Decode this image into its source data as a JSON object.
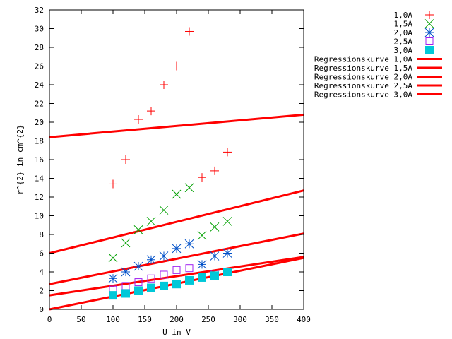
{
  "chart_data": {
    "type": "scatter",
    "xlabel": "U in V",
    "ylabel": "r^{2} in cm^{2}",
    "xlim": [
      0,
      400
    ],
    "ylim": [
      0,
      32
    ],
    "xticks": [
      0,
      50,
      100,
      150,
      200,
      250,
      300,
      350,
      400
    ],
    "yticks": [
      0,
      2,
      4,
      6,
      8,
      10,
      12,
      14,
      16,
      18,
      20,
      22,
      24,
      26,
      28,
      30,
      32
    ],
    "grid": false,
    "legend_position": "top-right outside",
    "series": [
      {
        "name": "1,0A",
        "marker": "plus",
        "color": "#ff0000",
        "x": [
          100,
          120,
          140,
          160,
          180,
          200,
          220,
          240,
          260,
          280
        ],
        "y": [
          13.4,
          16.0,
          20.3,
          21.2,
          24.0,
          26.0,
          29.7,
          14.1,
          14.8,
          16.8
        ]
      },
      {
        "name": "1,5A",
        "marker": "cross",
        "color": "#00a000",
        "x": [
          100,
          120,
          140,
          160,
          180,
          200,
          220,
          240,
          260,
          280
        ],
        "y": [
          5.5,
          7.1,
          8.5,
          9.4,
          10.6,
          12.3,
          13.0,
          7.9,
          8.8,
          9.4
        ]
      },
      {
        "name": "2,0A",
        "marker": "star",
        "color": "#0050c8",
        "x": [
          100,
          120,
          140,
          160,
          180,
          200,
          220,
          240,
          260,
          280
        ],
        "y": [
          3.3,
          4.0,
          4.6,
          5.3,
          5.7,
          6.5,
          7.0,
          4.8,
          5.7,
          6.0
        ]
      },
      {
        "name": "2,5A",
        "marker": "open-square",
        "color": "#a020f0",
        "x": [
          100,
          120,
          140,
          160,
          180,
          200,
          220,
          240,
          260,
          280
        ],
        "y": [
          2.1,
          2.5,
          2.9,
          3.3,
          3.7,
          4.2,
          4.4,
          3.4,
          3.8,
          4.0
        ]
      },
      {
        "name": "3,0A",
        "marker": "filled-square",
        "color": "#00c8d8",
        "x": [
          100,
          120,
          140,
          160,
          180,
          200,
          220,
          240,
          260,
          280
        ],
        "y": [
          1.5,
          1.7,
          2.0,
          2.3,
          2.5,
          2.7,
          3.1,
          3.4,
          3.6,
          4.0
        ]
      }
    ],
    "regression": [
      {
        "name": "Regressionskurve 1,0A",
        "color": "#ff0000",
        "x": [
          0,
          400
        ],
        "y": [
          18.4,
          20.8
        ]
      },
      {
        "name": "Regressionskurve 1,5A",
        "color": "#ff0000",
        "x": [
          0,
          400
        ],
        "y": [
          6.0,
          12.7
        ]
      },
      {
        "name": "Regressionskurve 2,0A",
        "color": "#ff0000",
        "x": [
          0,
          400
        ],
        "y": [
          2.7,
          8.1
        ]
      },
      {
        "name": "Regressionskurve 2,5A",
        "color": "#ff0000",
        "x": [
          0,
          400
        ],
        "y": [
          1.5,
          5.6
        ]
      },
      {
        "name": "Regressionskurve 3,0A",
        "color": "#ff0000",
        "x": [
          0,
          400
        ],
        "y": [
          0.0,
          5.5
        ]
      }
    ]
  }
}
